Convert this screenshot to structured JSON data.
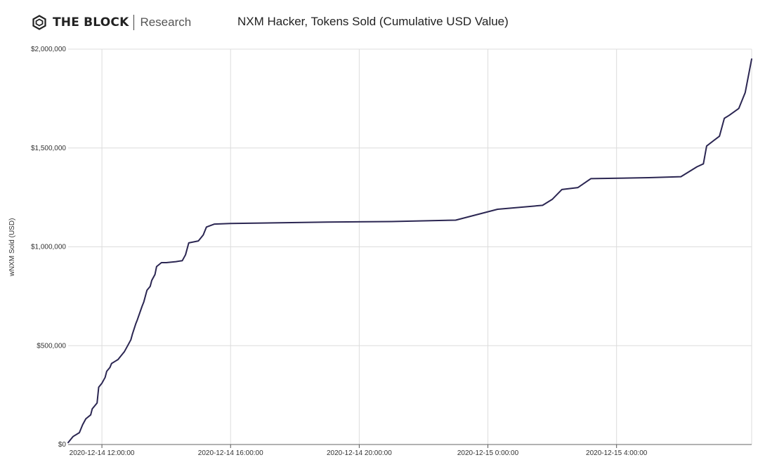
{
  "brand": {
    "name": "THE BLOCK",
    "sub": "Research"
  },
  "chart_data": {
    "type": "line",
    "title": "NXM Hacker, Tokens Sold (Cumulative USD Value)",
    "xlabel": "",
    "ylabel": "wNXM Sold (USD)",
    "ylim": [
      0,
      2000000
    ],
    "y_ticks": [
      0,
      500000,
      1000000,
      1500000,
      2000000
    ],
    "y_tick_labels": [
      "$0",
      "$500,000",
      "$1,000,000",
      "$1,500,000",
      "$2,000,000"
    ],
    "x_tick_labels": [
      "2020-12-14 12:00:00",
      "2020-12-14 16:00:00",
      "2020-12-14 20:00:00",
      "2020-12-15 0:00:00",
      "2020-12-15 4:00:00"
    ],
    "x_tick_hours": [
      12,
      16,
      20,
      24,
      28
    ],
    "x_range_hours": [
      10.95,
      32.2
    ],
    "grid": true,
    "line_color": "#2b2652",
    "series": [
      {
        "x_hours": [
          10.95,
          11.1,
          11.3,
          11.4,
          11.5,
          11.65,
          11.7,
          11.85,
          11.9,
          12.0,
          12.1,
          12.15,
          12.25,
          12.3,
          12.4,
          12.5,
          12.6,
          12.7,
          12.8,
          12.9,
          12.95,
          13.05,
          13.1,
          13.25,
          13.3,
          13.4,
          13.5,
          13.55,
          13.65,
          13.7,
          13.85,
          14.0,
          14.3,
          14.5,
          14.6,
          14.7,
          15.0,
          15.15,
          15.25,
          15.5,
          16.0,
          19.0,
          21.0,
          23.0,
          24.3,
          25.7,
          26.0,
          26.3,
          26.8,
          27.2,
          29.0,
          30.0,
          30.5,
          30.7,
          30.8,
          31.2,
          31.35,
          31.5,
          31.8,
          32.0,
          32.2
        ],
        "values": [
          10000,
          40000,
          60000,
          100000,
          130000,
          150000,
          180000,
          210000,
          290000,
          310000,
          340000,
          370000,
          390000,
          410000,
          420000,
          430000,
          450000,
          470000,
          500000,
          530000,
          560000,
          610000,
          630000,
          700000,
          720000,
          780000,
          800000,
          830000,
          860000,
          900000,
          920000,
          920000,
          925000,
          930000,
          960000,
          1020000,
          1030000,
          1060000,
          1100000,
          1115000,
          1118000,
          1125000,
          1128000,
          1135000,
          1190000,
          1210000,
          1240000,
          1290000,
          1300000,
          1345000,
          1350000,
          1355000,
          1405000,
          1420000,
          1510000,
          1560000,
          1650000,
          1665000,
          1700000,
          1780000,
          1950000
        ]
      }
    ]
  }
}
